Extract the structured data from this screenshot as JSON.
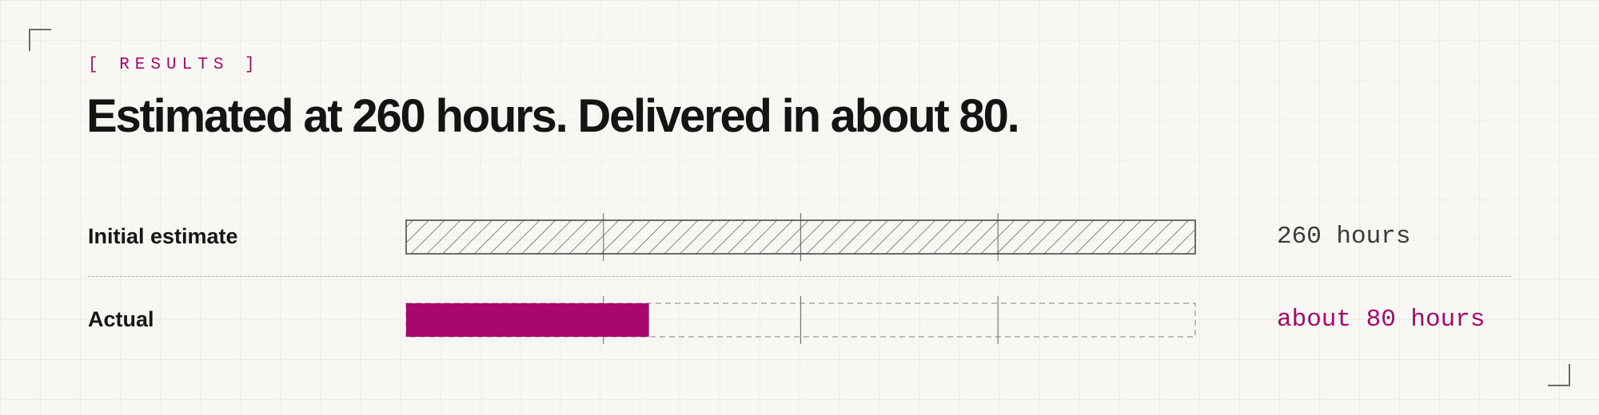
{
  "header": {
    "eyebrow": "[ RESULTS ]",
    "title": "Estimated at 260 hours. Delivered in about 80."
  },
  "colors": {
    "accent": "#a8076b",
    "ink": "#161616",
    "muted": "#3a3a3a",
    "grid": "#7a7a7a",
    "dashed": "#a9a9a9"
  },
  "chart_data": {
    "type": "bar",
    "orientation": "horizontal",
    "xlim": [
      0,
      260
    ],
    "grid": true,
    "categories": [
      "Initial estimate",
      "Actual"
    ],
    "values": [
      260,
      80
    ],
    "data_labels": [
      "260 hours",
      "about 80 hours"
    ],
    "styles": [
      "hatched",
      "solid"
    ]
  }
}
